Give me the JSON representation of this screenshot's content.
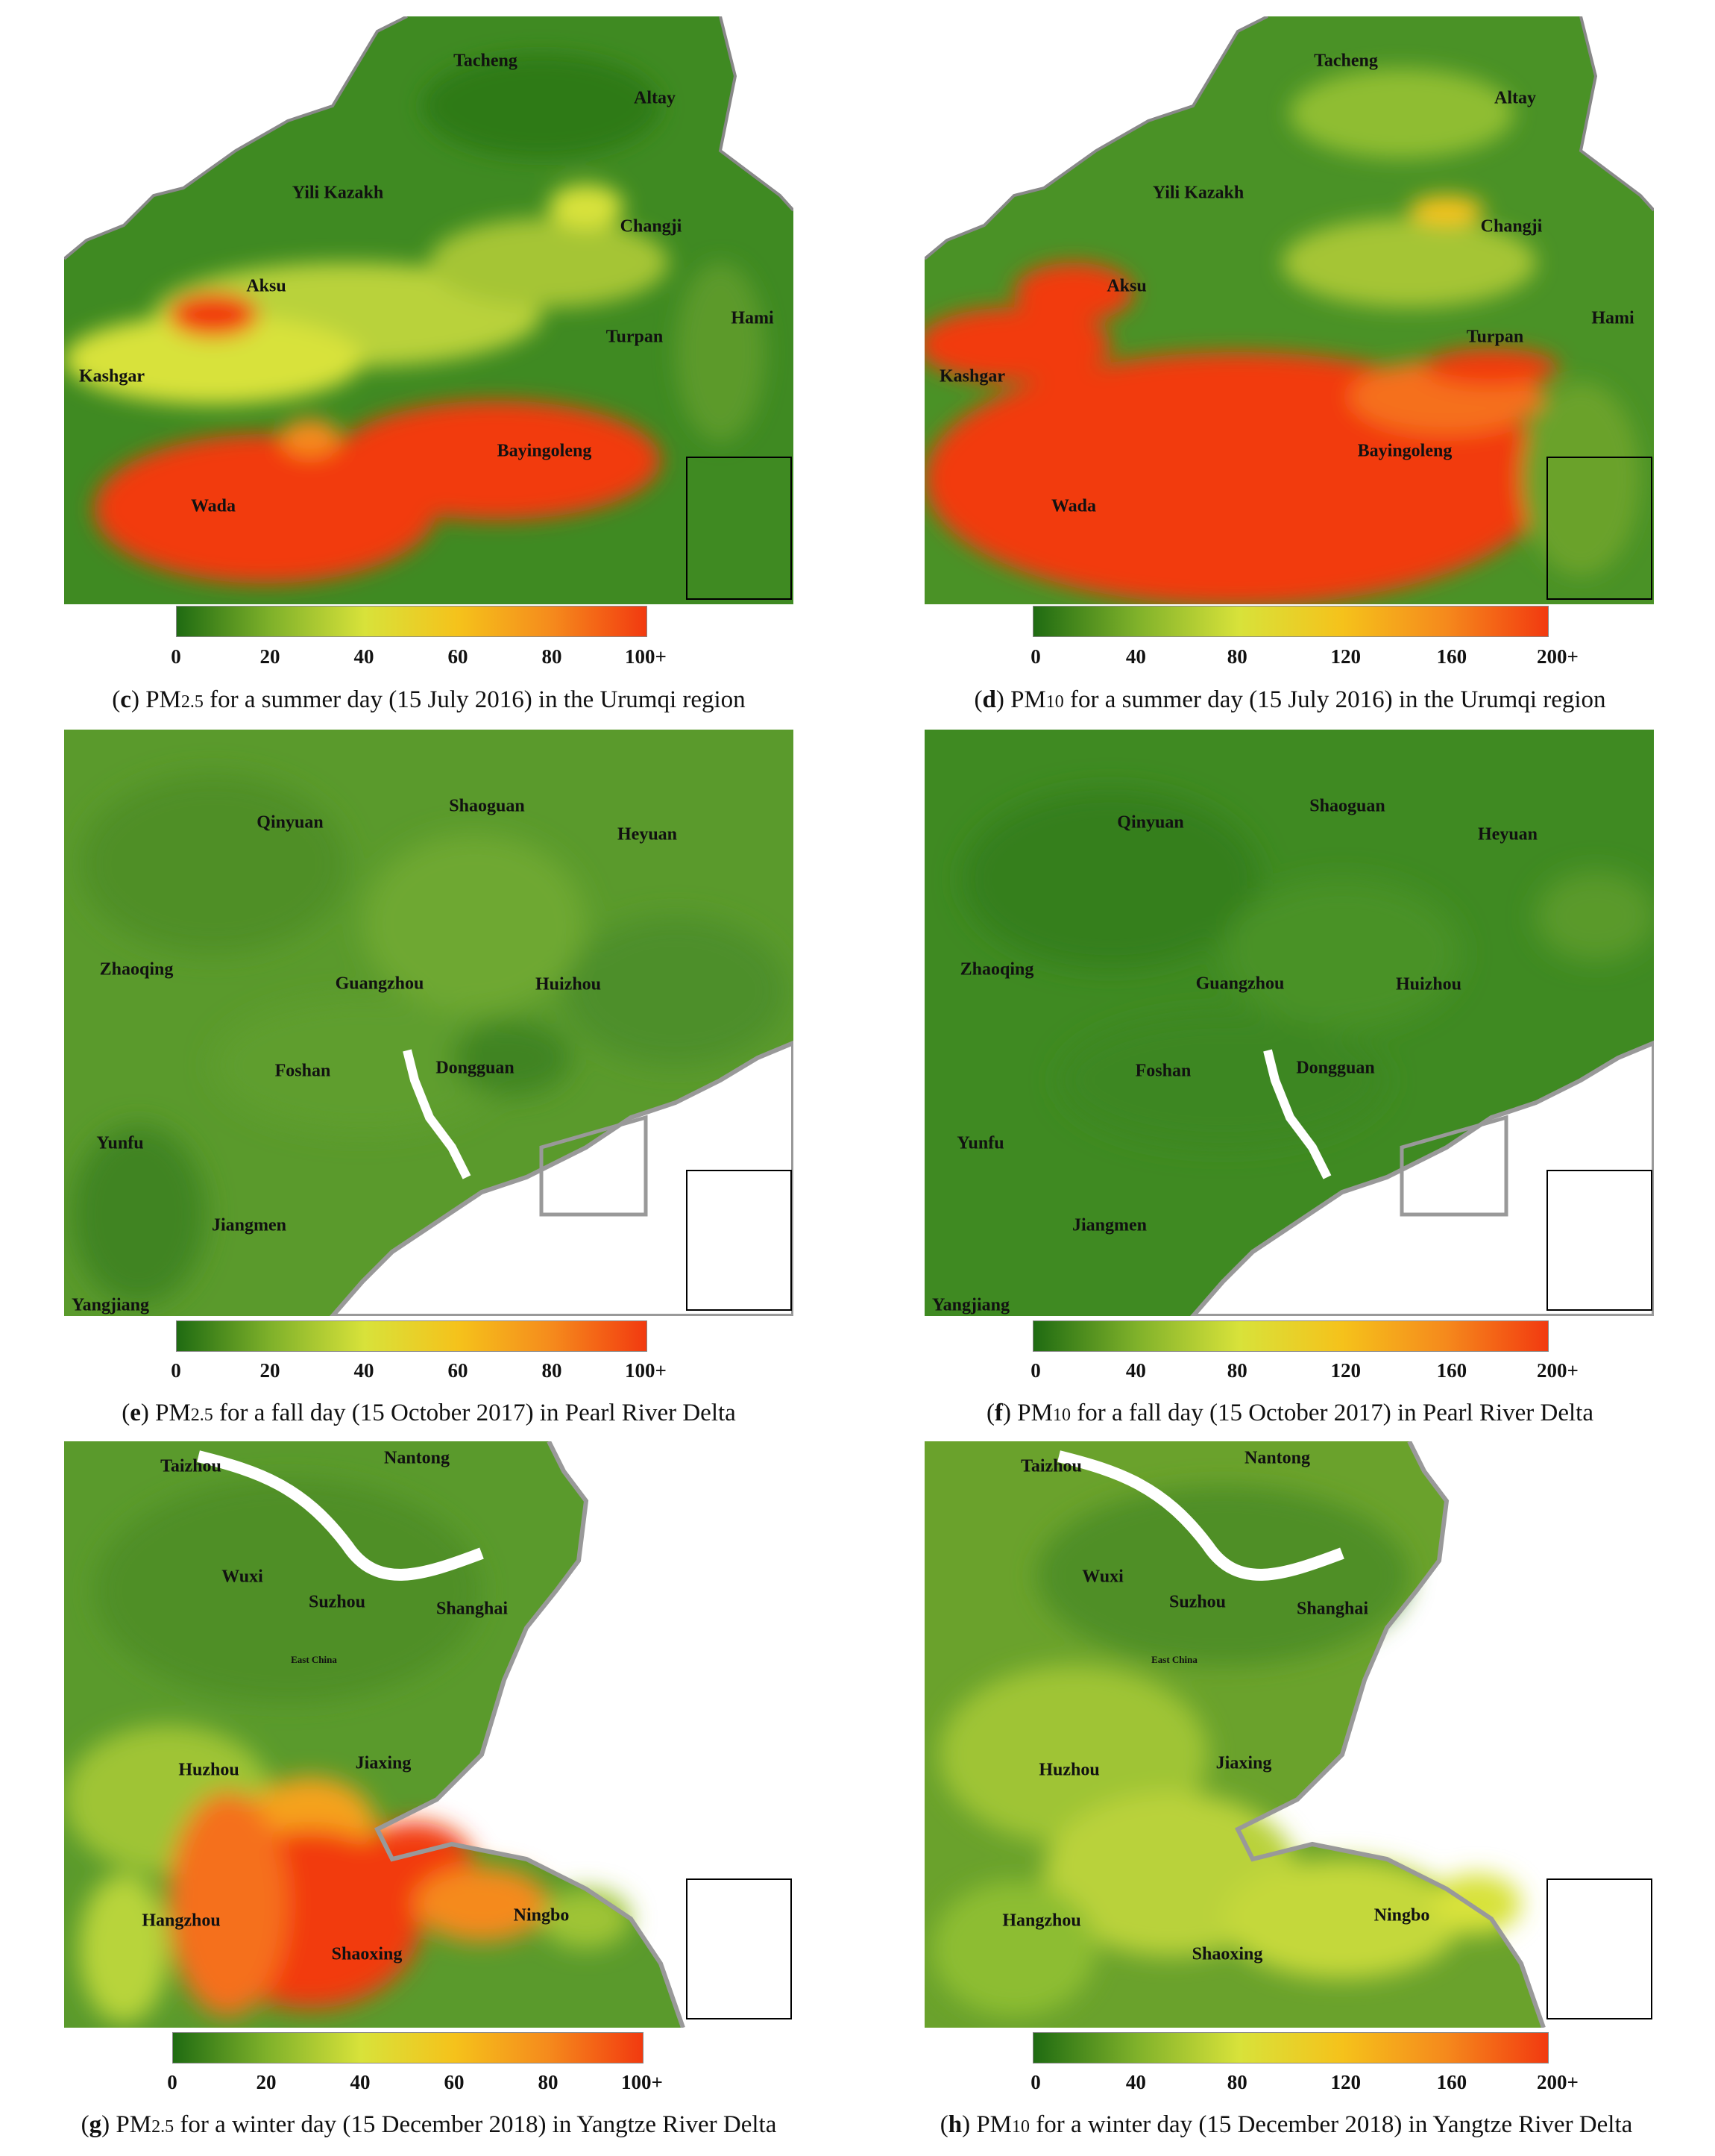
{
  "colorbars": {
    "pm25_ticks": [
      "0",
      "20",
      "40",
      "60",
      "80",
      "100+"
    ],
    "pm10_ticks": [
      "0",
      "40",
      "80",
      "120",
      "160",
      "200+"
    ],
    "colors": [
      "#1f6b12",
      "#7fb12a",
      "#d8e23a",
      "#f5c21b",
      "#f58a1c",
      "#f23a10"
    ]
  },
  "panels": [
    {
      "id": "c",
      "pollutant": "PM",
      "pollutant_sub": "2.5",
      "caption_letter": "c",
      "caption_rest": " for a summer day (15 July 2016) in the Urumqi region",
      "places": [
        "Tacheng",
        "Altay",
        "Yili Kazakh",
        "Changji",
        "Aksu",
        "Hami",
        "Turpan",
        "Kashgar",
        "Bayingoleng",
        "Wada"
      ]
    },
    {
      "id": "d",
      "pollutant": "PM",
      "pollutant_sub": "10",
      "caption_letter": "d",
      "caption_rest": " for a summer day (15 July 2016) in the Urumqi region",
      "places": [
        "Tacheng",
        "Altay",
        "Yili Kazakh",
        "Changji",
        "Aksu",
        "Hami",
        "Turpan",
        "Kashgar",
        "Bayingoleng",
        "Wada"
      ]
    },
    {
      "id": "e",
      "pollutant": "PM",
      "pollutant_sub": "2.5",
      "caption_letter": "e",
      "caption_rest": " for a fall day (15 October 2017) in Pearl River Delta",
      "places": [
        "Shaoguan",
        "Qinyuan",
        "Heyuan",
        "Zhaoqing",
        "Guangzhou",
        "Huizhou",
        "Foshan",
        "Dongguan",
        "Yunfu",
        "Jiangmen",
        "Yangjiang"
      ]
    },
    {
      "id": "f",
      "pollutant": "PM",
      "pollutant_sub": "10",
      "caption_letter": "f",
      "caption_rest": " for a fall day (15 October 2017) in Pearl River Delta",
      "places": [
        "Shaoguan",
        "Qinyuan",
        "Heyuan",
        "Zhaoqing",
        "Guangzhou",
        "Huizhou",
        "Foshan",
        "Dongguan",
        "Yunfu",
        "Jiangmen",
        "Yangjiang"
      ]
    },
    {
      "id": "g",
      "pollutant": "PM",
      "pollutant_sub": "2.5",
      "caption_letter": "g",
      "caption_rest": " for a winter day (15 December 2018) in Yangtze River Delta",
      "places": [
        "Taizhou",
        "Nantong",
        "Wuxi",
        "Suzhou",
        "Shanghai",
        "East China",
        "Huzhou",
        "Jiaxing",
        "Hangzhou",
        "Ningbo",
        "Shaoxing"
      ]
    },
    {
      "id": "h",
      "pollutant": "PM",
      "pollutant_sub": "10",
      "caption_letter": "h",
      "caption_rest": " for a winter day (15 December 2018) in Yangtze River Delta",
      "places": [
        "Taizhou",
        "Nantong",
        "Wuxi",
        "Suzhou",
        "Shanghai",
        "East China",
        "Huzhou",
        "Jiaxing",
        "Hangzhou",
        "Ningbo",
        "Shaoxing"
      ]
    }
  ]
}
